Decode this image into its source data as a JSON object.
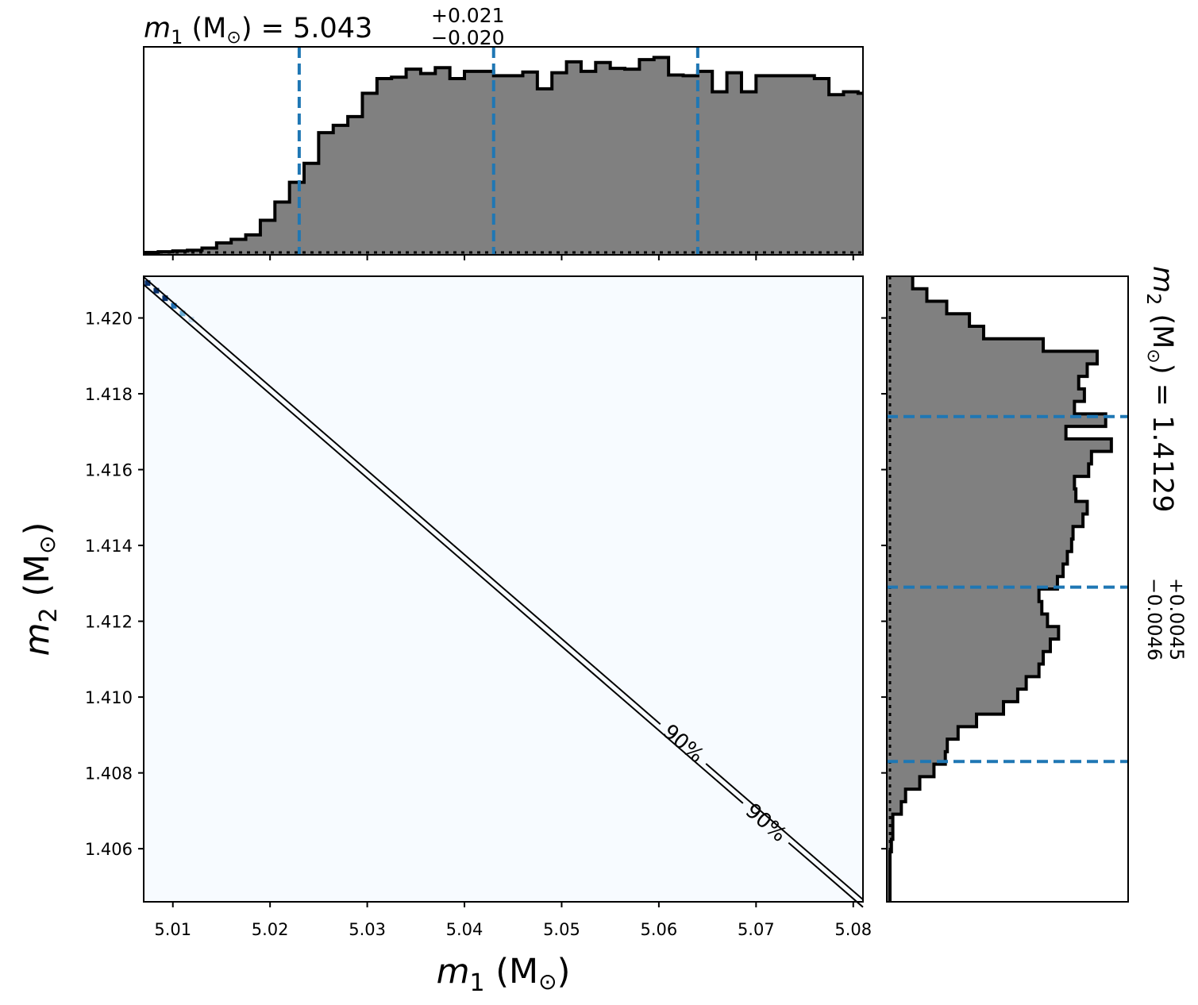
{
  "chart_data": [
    {
      "type": "histogram",
      "panel": "m1-marginal",
      "title": {
        "var": "m",
        "sub": "1",
        "unit": " (M",
        "sun": "⊙",
        "close": ") = 5.043",
        "plus": "+0.021",
        "minus": "−0.020"
      },
      "xlim": [
        5.007,
        5.081
      ],
      "bin_width": 0.0015,
      "bin_start": 5.007,
      "counts": [
        0,
        0.2,
        0.4,
        0.6,
        1.2,
        2.6,
        3.6,
        4.8,
        8.8,
        13.8,
        19.2,
        24.4,
        32.8,
        34.8,
        37.2,
        43.6,
        47.6,
        48.0,
        50.2,
        49.0,
        50.6,
        47.6,
        49.6,
        49.6,
        48.4,
        48.4,
        49.4,
        44.8,
        49.2,
        52.2,
        49.6,
        52.0,
        50.4,
        50.2,
        52.8,
        53.4,
        48.6,
        48.4,
        49.6,
        44.0,
        49.2,
        44.0,
        48.4,
        48.4,
        48.4,
        48.4,
        47.6,
        43.2,
        44.0,
        43.6,
        43.6,
        38.6,
        33.6,
        28.6,
        23.2,
        17.4,
        13.2,
        9.0,
        6.8,
        3.2,
        1.2,
        1.0,
        1.0,
        0.6,
        0.4,
        0.2
      ],
      "ymax": 55,
      "quantiles": [
        5.023,
        5.043,
        5.064
      ],
      "xticks": [
        "5.01",
        "5.02",
        "5.03",
        "5.04",
        "5.05",
        "5.06",
        "5.07",
        "5.08"
      ],
      "xtick_values": [
        5.01,
        5.02,
        5.03,
        5.04,
        5.05,
        5.06,
        5.07,
        5.08
      ],
      "colors": {
        "fill": "#808080",
        "edge": "#000000",
        "quantile": "#1f77b4"
      }
    },
    {
      "type": "heatmap",
      "panel": "joint",
      "xlabel": {
        "var": "m",
        "sub": "1",
        "unit": " (M",
        "sun": "⊙",
        "close": ")"
      },
      "ylabel": {
        "var": "m",
        "sub": "2",
        "unit": " (M",
        "sun": "⊙",
        "close": ")"
      },
      "xlim": [
        5.007,
        5.081
      ],
      "ylim": [
        1.4046,
        1.4211
      ],
      "xticks": [
        "5.01",
        "5.02",
        "5.03",
        "5.04",
        "5.05",
        "5.06",
        "5.07",
        "5.08"
      ],
      "xtick_values": [
        5.01,
        5.02,
        5.03,
        5.04,
        5.05,
        5.06,
        5.07,
        5.08
      ],
      "yticks": [
        "1.406",
        "1.408",
        "1.410",
        "1.412",
        "1.414",
        "1.416",
        "1.418",
        "1.420"
      ],
      "ytick_values": [
        1.406,
        1.408,
        1.41,
        1.412,
        1.414,
        1.416,
        1.418,
        1.42
      ],
      "contours": [
        {
          "label": "90%",
          "line": [
            [
              5.007,
              1.42108
            ],
            [
              5.081,
              1.40466
            ]
          ],
          "label_at": 5.0625
        },
        {
          "label": "90%",
          "line": [
            [
              5.007,
              1.42088
            ],
            [
              5.081,
              1.40446
            ]
          ],
          "label_at": 5.071
        }
      ],
      "hot_cells": [
        {
          "x": 5.0074,
          "y": 1.42092,
          "shade": "#08306b"
        },
        {
          "x": 5.0083,
          "y": 1.42072,
          "shade": "#08306b"
        },
        {
          "x": 5.0092,
          "y": 1.42052,
          "shade": "#08306b"
        },
        {
          "x": 5.0101,
          "y": 1.42032,
          "shade": "#2171b5"
        },
        {
          "x": 5.011,
          "y": 1.42012,
          "shade": "#6baed6"
        },
        {
          "x": 5.0119,
          "y": 1.41996,
          "shade": "#c6dbef"
        }
      ],
      "colors": {
        "background": "#f7fbff",
        "contour": "#000000"
      }
    },
    {
      "type": "histogram",
      "panel": "m2-marginal",
      "orientation": "horizontal",
      "title": {
        "var": "m",
        "sub": "2",
        "unit": " (M",
        "sun": "⊙",
        "close": ") = 1.4129",
        "plus": "+0.0045",
        "minus": "−0.0046"
      },
      "ylim": [
        1.4046,
        1.4211
      ],
      "bin_width": 0.00033,
      "bin_start": 1.4046,
      "counts": [
        0,
        0,
        0,
        0,
        0.5,
        1,
        1,
        4,
        5.5,
        10.5,
        15.5,
        19.5,
        20.2,
        24,
        30.5,
        40,
        45,
        48,
        52.5,
        54,
        56.5,
        59.4,
        55.5,
        53.5,
        52.5,
        59,
        61,
        62.5,
        64,
        64.5,
        68,
        69.5,
        65.5,
        65,
        70,
        71,
        78,
        62,
        76,
        65,
        68.5,
        66.5,
        69.5,
        73,
        54,
        33,
        28,
        20,
        13,
        8,
        5,
        4,
        2,
        1.5,
        1,
        0.5
      ],
      "xmax": 80,
      "quantiles": [
        1.4083,
        1.4129,
        1.4174
      ],
      "colors": {
        "fill": "#808080",
        "edge": "#000000",
        "quantile": "#1f77b4"
      }
    }
  ]
}
